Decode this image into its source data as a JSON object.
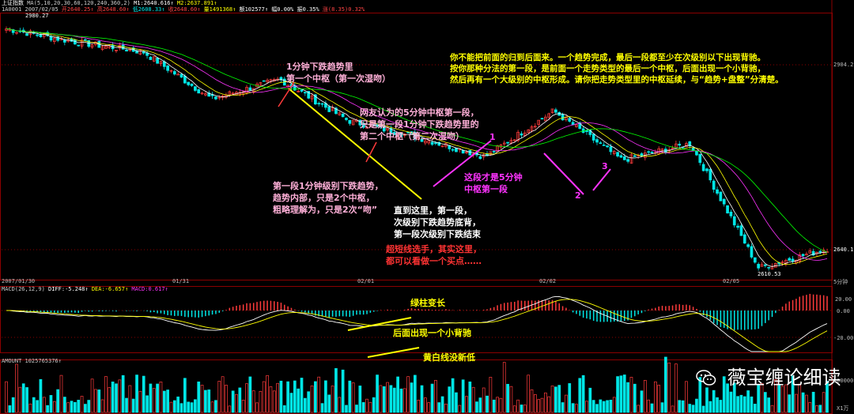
{
  "header": {
    "row1": {
      "title": "上证指数",
      "ma": "MA(5,10,20,30,60,120,240,360,2)",
      "m1": "M1:2640.616↑",
      "m2": "M2:2637.891↑"
    },
    "row2": {
      "code": "1A0001",
      "date": "2007/02/05",
      "open": "开2640.25↑",
      "high": "高2648.60↑",
      "low": "低2608.33↑",
      "close": "收2648.60↑",
      "volume": "量1491368↑",
      "amount": "额102577↑",
      "change": "幅0.00%",
      "amplitude": "振0.35%",
      "diff": "涨(8.35)0.32%"
    }
  },
  "axes": {
    "price_top": "2980.27",
    "price_mid": "2904.2",
    "price_last": "2640.1",
    "price_low": "2610.53",
    "dates": [
      "2007/01/30",
      "01/31",
      "02/01",
      "02/02",
      "02/05"
    ],
    "period": "5分钟",
    "macd_ticks": [
      "20.00",
      "0.00",
      "-20.00"
    ],
    "vol_tick": "100000",
    "vol_unit": "X1万"
  },
  "macd_header": {
    "name": "MACD(26,12,9)",
    "diff": "DIFF:-5.248↑",
    "dea": "DEA:-6.657↑",
    "macd": "MACD:0.617↑"
  },
  "amount_header": "AMOUNT 1025765376↑",
  "annotations": {
    "a1": [
      "1分钟下跌趋势里",
      "第一个中枢（第一次湿吻）"
    ],
    "a2": [
      "网友认为的5分钟中枢第一段，",
      "只是第一段1分钟下跌趋势里的",
      "第二个中枢（第二次湿吻）"
    ],
    "a3": [
      "第一段1分钟级别下跌趋势，",
      "趋势内部，只是2个中枢，",
      "粗略理解为，只是2次“吻”"
    ],
    "a4": [
      "直到这里，第一段，",
      "次级别下跌趋势底背，",
      "第一段次级别下跌结束"
    ],
    "a5": [
      "超短线选手，其实这里，",
      "都可以看做一个买点……"
    ],
    "a6": [
      "这段才是5分钟",
      "中枢第一段"
    ],
    "a7": [
      "你不能把前面的归到后面来。一个趋势完成，最后一段都至少在次级别以下出现背驰。",
      "按你那种分法的第一段，是前面一个走势类型的最后一个中枢，后面出现一个小背驰，",
      "然后再有一个大级别的中枢形成。请你把走势类型里的中枢延续，与“趋势+盘整”分清楚。"
    ],
    "n1": "1",
    "n2": "2",
    "n3": "3",
    "m1": "绿柱变长",
    "m2": "后面出现一个小背驰",
    "m3": "黄白线没新低"
  },
  "watermark": "薇宝缠论细读",
  "colors": {
    "up": "#ff3b3b",
    "down": "#00e6e6",
    "yellow": "#ffff00",
    "magenta": "#ff33ff",
    "pink": "#ffb0d8",
    "white": "#ffffff"
  },
  "chart_data": {
    "type": "line",
    "title": "上证指数 5分钟",
    "x_dates": [
      "2007/01/30",
      "01/31",
      "02/01",
      "02/02",
      "02/05"
    ],
    "close_keypoints": [
      {
        "t": "01/30 open",
        "y": 2975
      },
      {
        "t": "01/30 mid",
        "y": 2955
      },
      {
        "t": "01/31 open",
        "y": 2940
      },
      {
        "t": "01/31 low1",
        "y": 2868
      },
      {
        "t": "01/31 bounce",
        "y": 2898
      },
      {
        "t": "02/01 open",
        "y": 2835
      },
      {
        "t": "02/01 mid",
        "y": 2810
      },
      {
        "t": "02/01 low",
        "y": 2780
      },
      {
        "t": "02/02 high",
        "y": 2850
      },
      {
        "t": "02/02 low",
        "y": 2775
      },
      {
        "t": "02/02 rebound",
        "y": 2800
      },
      {
        "t": "02/05 low",
        "y": 2610.53
      },
      {
        "t": "02/05 last",
        "y": 2640.1
      }
    ],
    "ylim": [
      2600,
      2990
    ]
  }
}
